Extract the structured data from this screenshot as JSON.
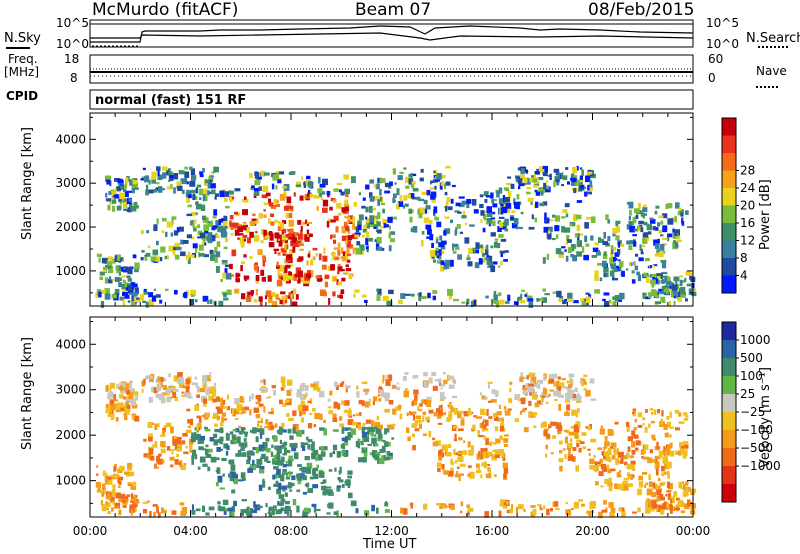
{
  "header": {
    "station": "McMurdo (fitACF)",
    "beam": "Beam 07",
    "date": "08/Feb/2015"
  },
  "top_panels": {
    "nsky_label": "N.Sky",
    "nsearch_label": "N.Search",
    "nsky_ticks": [
      "10^5",
      "10^0"
    ],
    "nsearch_ticks": [
      "10^5",
      "10^0"
    ],
    "freq_label": "Freq.",
    "freq_unit": "[MHz]",
    "freq_ticks": [
      "18",
      "8"
    ],
    "nave_label": "Nave",
    "nave_ticks": [
      "60",
      "0"
    ],
    "cpid_label": "CPID",
    "cpid_value": "normal (fast) 151 RF"
  },
  "chart_data": [
    {
      "type": "heatmap",
      "name": "power-panel",
      "ylabel": "Slant Range [km]",
      "xlabel": "",
      "x_range_hours": [
        0,
        24
      ],
      "ylim": [
        200,
        4600
      ],
      "y_ticks": [
        "1000",
        "2000",
        "3000",
        "4000"
      ],
      "colorbar_label": "Power [dB]",
      "colorbar_ticks": [
        "4",
        "8",
        "12",
        "16",
        "20",
        "24",
        "28"
      ],
      "colorbar_colors": [
        "#0019ff",
        "#204aa0",
        "#3a7f9e",
        "#3f8f66",
        "#79bb3a",
        "#e8d21a",
        "#f5a21a",
        "#f36b1a",
        "#e8321a",
        "#c4000c"
      ]
    },
    {
      "type": "heatmap",
      "name": "velocity-panel",
      "ylabel": "Slant Range [km]",
      "xlabel": "Time UT",
      "x_range_hours": [
        0,
        24
      ],
      "ylim": [
        200,
        4600
      ],
      "y_ticks": [
        "1000",
        "2000",
        "3000",
        "4000"
      ],
      "x_ticks": [
        "00:00",
        "04:00",
        "08:00",
        "12:00",
        "16:00",
        "20:00",
        "00:00"
      ],
      "colorbar_label": "Velocity [m s⁻¹]",
      "colorbar_ticks": [
        "1000",
        "500",
        "100",
        "25",
        "−25",
        "−100",
        "−500",
        "−1000"
      ],
      "colorbar_colors": [
        "#1c2a9e",
        "#2b63a8",
        "#3f8a6a",
        "#62b547",
        "#c8c8c0",
        "#f0c020",
        "#f59b1a",
        "#f06a1a",
        "#e33216",
        "#d0000a"
      ]
    }
  ]
}
